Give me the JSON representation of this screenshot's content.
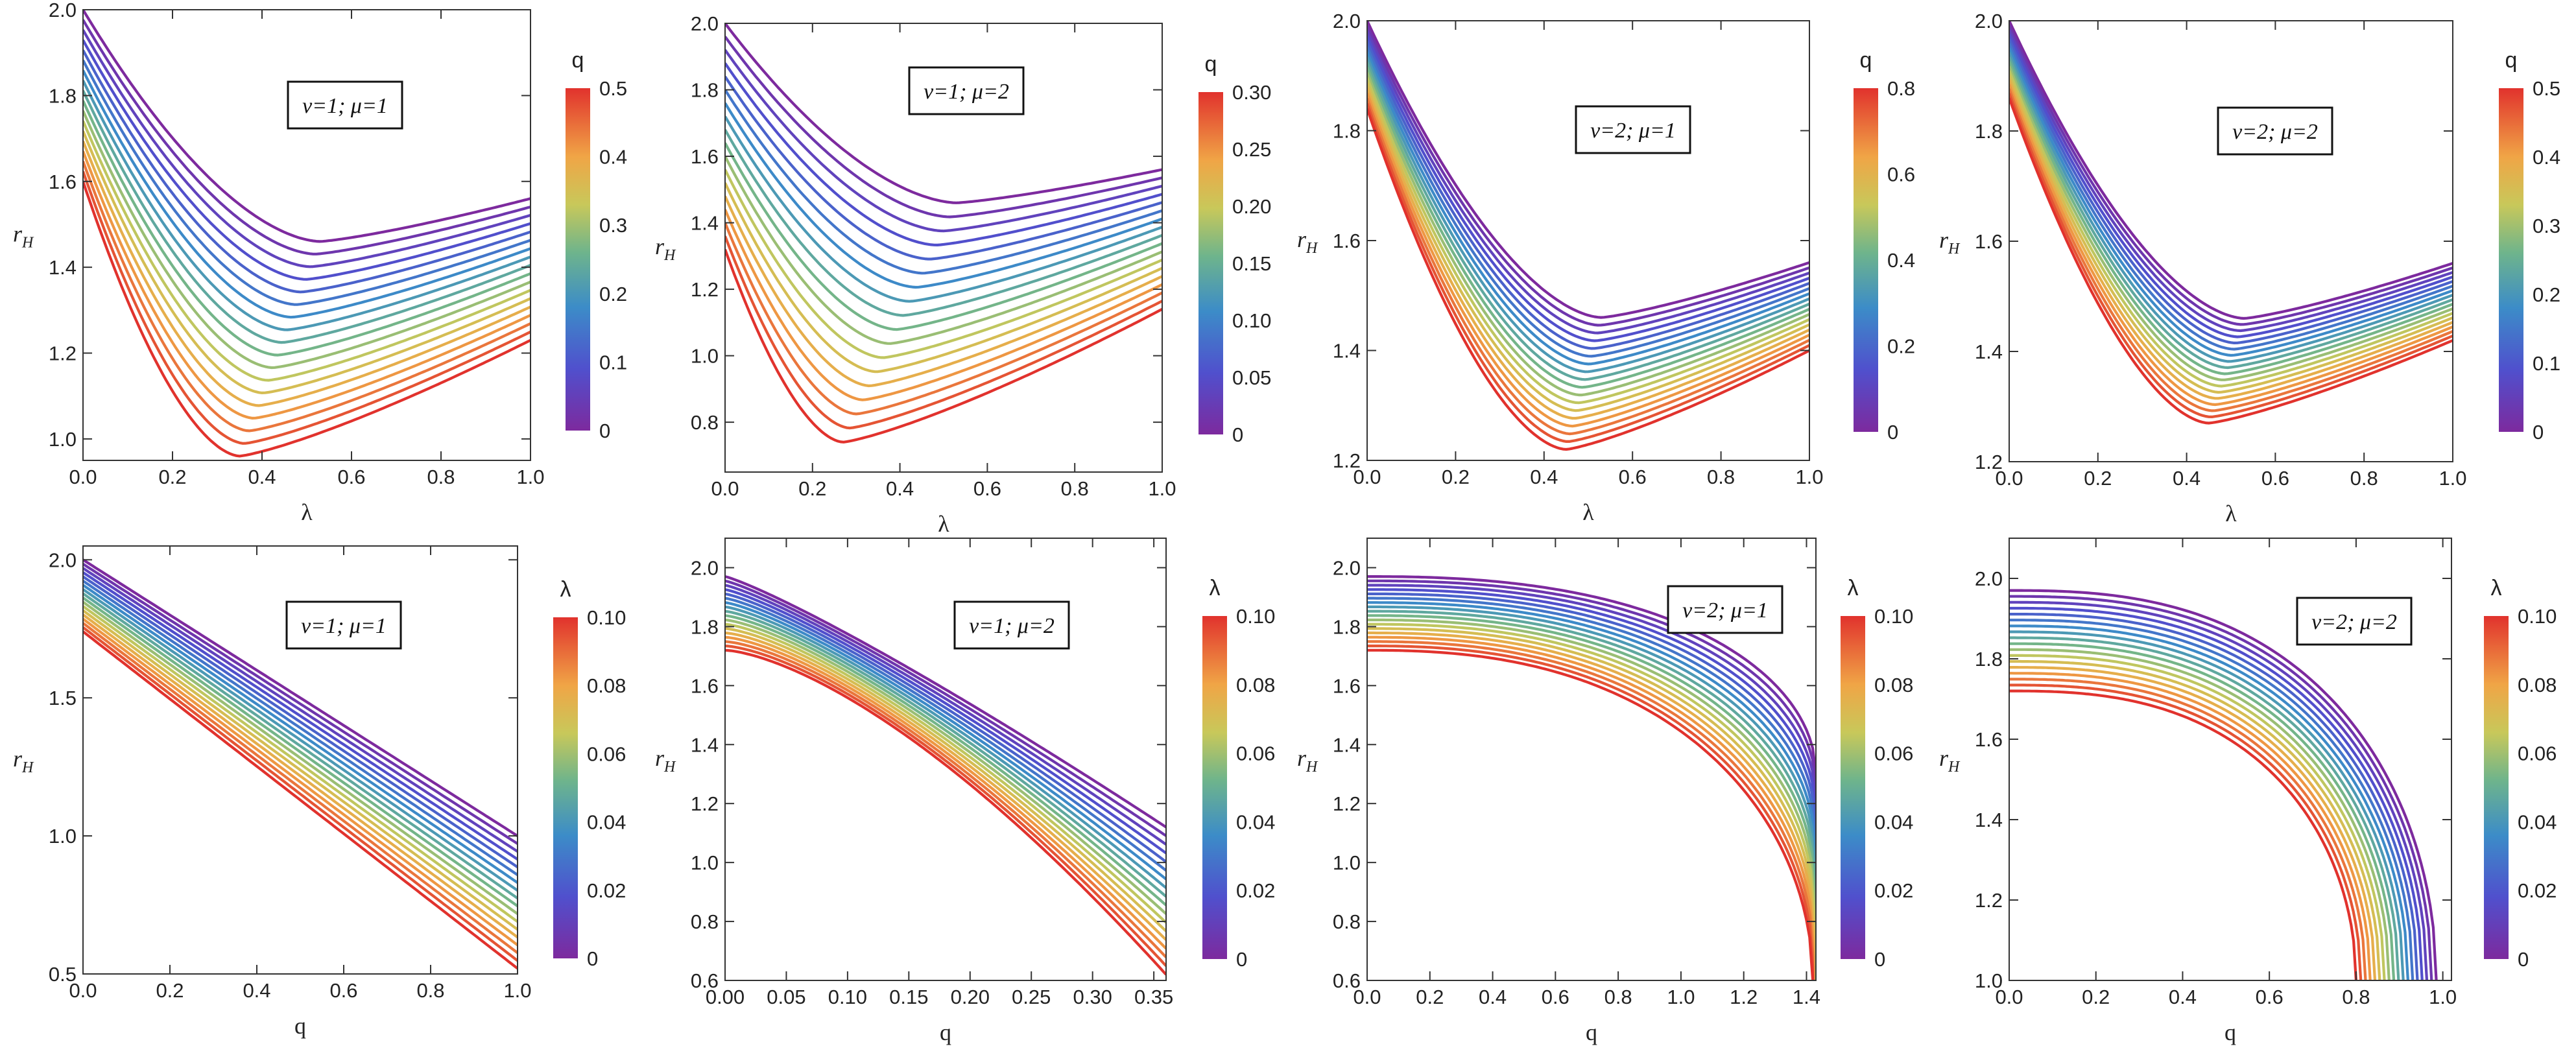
{
  "chart_data": [
    {
      "type": "line",
      "xlabel": "λ",
      "ylabel": "rH",
      "ylabel_main": "r",
      "ylabel_sub": "H",
      "param_label": "ν=1; μ=1",
      "xlim": [
        0,
        1
      ],
      "ylim": [
        0.95,
        2.0
      ],
      "xticks": [
        0.0,
        0.2,
        0.4,
        0.6,
        0.8,
        1.0
      ],
      "yticks": [
        1.0,
        1.2,
        1.4,
        1.6,
        1.8,
        2.0
      ],
      "xtick_labels": [
        "0.0",
        "0.2",
        "0.4",
        "0.6",
        "0.8",
        "1.0"
      ],
      "ytick_labels": [
        "1.0",
        "1.2",
        "1.4",
        "1.6",
        "1.8",
        "2.0"
      ],
      "colorbar": {
        "title": "q",
        "min": 0,
        "max": 0.5,
        "ticks": [
          0,
          0.1,
          0.2,
          0.3,
          0.4,
          0.5
        ],
        "tick_labels": [
          "0",
          "0.1",
          "0.2",
          "0.3",
          "0.4",
          "0.5"
        ]
      },
      "family": {
        "param_min": 0,
        "param_max": 0.5,
        "count": 18,
        "x0": 0,
        "x1": 1,
        "top": {
          "start": 2.0,
          "min_x": 0.53,
          "min_y": 1.46,
          "end": 1.56
        },
        "bottom": {
          "start": 1.6,
          "min_x": 0.35,
          "min_y": 0.96,
          "end": 1.23
        }
      }
    },
    {
      "type": "line",
      "xlabel": "λ",
      "ylabel": "rH",
      "ylabel_main": "r",
      "ylabel_sub": "H",
      "param_label": "ν=1; μ=2",
      "xlim": [
        0,
        1
      ],
      "ylim": [
        0.65,
        2.0
      ],
      "xticks": [
        0.0,
        0.2,
        0.4,
        0.6,
        0.8,
        1.0
      ],
      "yticks": [
        0.8,
        1.0,
        1.2,
        1.4,
        1.6,
        1.8,
        2.0
      ],
      "xtick_labels": [
        "0.0",
        "0.2",
        "0.4",
        "0.6",
        "0.8",
        "1.0"
      ],
      "ytick_labels": [
        "0.8",
        "1.0",
        "1.2",
        "1.4",
        "1.6",
        "1.8",
        "2.0"
      ],
      "colorbar": {
        "title": "q",
        "min": 0,
        "max": 0.3,
        "ticks": [
          0,
          0.05,
          0.1,
          0.15,
          0.2,
          0.25,
          0.3
        ],
        "tick_labels": [
          "0",
          "0.05",
          "0.10",
          "0.15",
          "0.20",
          "0.25",
          "0.30"
        ]
      },
      "family": {
        "param_min": 0,
        "param_max": 0.3,
        "count": 18,
        "x0": 0,
        "x1": 1,
        "top": {
          "start": 2.0,
          "min_x": 0.53,
          "min_y": 1.46,
          "end": 1.56
        },
        "bottom": {
          "start": 1.32,
          "min_x": 0.27,
          "min_y": 0.74,
          "end": 1.14
        }
      }
    },
    {
      "type": "line",
      "xlabel": "λ",
      "ylabel": "rH",
      "ylabel_main": "r",
      "ylabel_sub": "H",
      "param_label": "ν=2; μ=1",
      "xlim": [
        0,
        1
      ],
      "ylim": [
        1.2,
        2.0
      ],
      "xticks": [
        0.0,
        0.2,
        0.4,
        0.6,
        0.8,
        1.0
      ],
      "yticks": [
        1.2,
        1.4,
        1.6,
        1.8,
        2.0
      ],
      "xtick_labels": [
        "0.0",
        "0.2",
        "0.4",
        "0.6",
        "0.8",
        "1.0"
      ],
      "ytick_labels": [
        "1.2",
        "1.4",
        "1.6",
        "1.8",
        "2.0"
      ],
      "colorbar": {
        "title": "q",
        "min": 0,
        "max": 0.8,
        "ticks": [
          0,
          0.2,
          0.4,
          0.6,
          0.8
        ],
        "tick_labels": [
          "0",
          "0.2",
          "0.4",
          "0.6",
          "0.8"
        ]
      },
      "family": {
        "param_min": 0,
        "param_max": 0.8,
        "count": 18,
        "x0": 0,
        "x1": 1,
        "top": {
          "start": 2.0,
          "min_x": 0.53,
          "min_y": 1.46,
          "end": 1.56
        },
        "bottom": {
          "start": 1.84,
          "min_x": 0.45,
          "min_y": 1.22,
          "end": 1.4
        }
      }
    },
    {
      "type": "line",
      "xlabel": "λ",
      "ylabel": "rH",
      "ylabel_main": "r",
      "ylabel_sub": "H",
      "param_label": "ν=2; μ=2",
      "xlim": [
        0,
        1
      ],
      "ylim": [
        1.2,
        2.0
      ],
      "xticks": [
        0.0,
        0.2,
        0.4,
        0.6,
        0.8,
        1.0
      ],
      "yticks": [
        1.2,
        1.4,
        1.6,
        1.8,
        2.0
      ],
      "xtick_labels": [
        "0.0",
        "0.2",
        "0.4",
        "0.6",
        "0.8",
        "1.0"
      ],
      "ytick_labels": [
        "1.2",
        "1.4",
        "1.6",
        "1.8",
        "2.0"
      ],
      "colorbar": {
        "title": "q",
        "min": 0,
        "max": 0.5,
        "ticks": [
          0,
          0.1,
          0.2,
          0.3,
          0.4,
          0.5
        ],
        "tick_labels": [
          "0",
          "0.1",
          "0.2",
          "0.3",
          "0.4",
          "0.5"
        ]
      },
      "family": {
        "param_min": 0,
        "param_max": 0.5,
        "count": 18,
        "x0": 0,
        "x1": 1,
        "top": {
          "start": 2.0,
          "min_x": 0.53,
          "min_y": 1.46,
          "end": 1.56
        },
        "bottom": {
          "start": 1.86,
          "min_x": 0.45,
          "min_y": 1.27,
          "end": 1.42
        }
      }
    },
    {
      "type": "line",
      "xlabel": "q",
      "ylabel": "rH",
      "ylabel_main": "r",
      "ylabel_sub": "H",
      "param_label": "ν=1; μ=1",
      "xlim": [
        0,
        1
      ],
      "ylim": [
        0.5,
        2.05
      ],
      "xticks": [
        0.0,
        0.2,
        0.4,
        0.6,
        0.8,
        1.0
      ],
      "yticks": [
        0.5,
        1.0,
        1.5,
        2.0
      ],
      "xtick_labels": [
        "0.0",
        "0.2",
        "0.4",
        "0.6",
        "0.8",
        "1.0"
      ],
      "ytick_labels": [
        "0.5",
        "1.0",
        "1.5",
        "2.0"
      ],
      "colorbar": {
        "title": "λ",
        "min": 0,
        "max": 0.1,
        "ticks": [
          0,
          0.02,
          0.04,
          0.06,
          0.08,
          0.1
        ],
        "tick_labels": [
          "0",
          "0.02",
          "0.04",
          "0.06",
          "0.08",
          "0.10"
        ]
      },
      "family": {
        "param_min": 0,
        "param_max": 0.1,
        "count": 18,
        "shape": "linear",
        "x0": 0,
        "x1": 1,
        "top": {
          "y0": 2.0,
          "y1": 1.0
        },
        "bottom": {
          "y0": 1.74,
          "y1": 0.52
        }
      }
    },
    {
      "type": "line",
      "xlabel": "q",
      "ylabel": "rH",
      "ylabel_main": "r",
      "ylabel_sub": "H",
      "param_label": "ν=1; μ=2",
      "xlim": [
        0,
        0.36
      ],
      "ylim": [
        0.6,
        2.1
      ],
      "xticks": [
        0.0,
        0.05,
        0.1,
        0.15,
        0.2,
        0.25,
        0.3,
        0.35
      ],
      "yticks": [
        0.6,
        0.8,
        1.0,
        1.2,
        1.4,
        1.6,
        1.8,
        2.0
      ],
      "xtick_labels": [
        "0.00",
        "0.05",
        "0.10",
        "0.15",
        "0.20",
        "0.25",
        "0.30",
        "0.35"
      ],
      "ytick_labels": [
        "0.6",
        "0.8",
        "1.0",
        "1.2",
        "1.4",
        "1.6",
        "1.8",
        "2.0"
      ],
      "colorbar": {
        "title": "λ",
        "min": 0,
        "max": 0.1,
        "ticks": [
          0,
          0.02,
          0.04,
          0.06,
          0.08,
          0.1
        ],
        "tick_labels": [
          "0",
          "0.02",
          "0.04",
          "0.06",
          "0.08",
          "0.10"
        ]
      },
      "family": {
        "param_min": 0,
        "param_max": 0.1,
        "count": 18,
        "shape": "concave",
        "x0": 0,
        "x1": 0.36,
        "top": {
          "y0": 1.97,
          "y1": 1.12,
          "p": 1.15
        },
        "bottom": {
          "y0": 1.72,
          "y1": 0.62,
          "p": 1.5
        }
      }
    },
    {
      "type": "line",
      "xlabel": "q",
      "ylabel": "rH",
      "ylabel_main": "r",
      "ylabel_sub": "H",
      "param_label": "ν=2; μ=1",
      "xlim": [
        0,
        1.43
      ],
      "ylim": [
        0.6,
        2.1
      ],
      "xticks": [
        0.0,
        0.2,
        0.4,
        0.6,
        0.8,
        1.0,
        1.2,
        1.4
      ],
      "yticks": [
        0.6,
        0.8,
        1.0,
        1.2,
        1.4,
        1.6,
        1.8,
        2.0
      ],
      "xtick_labels": [
        "0.0",
        "0.2",
        "0.4",
        "0.6",
        "0.8",
        "1.0",
        "1.2",
        "1.4"
      ],
      "ytick_labels": [
        "0.6",
        "0.8",
        "1.0",
        "1.2",
        "1.4",
        "1.6",
        "1.8",
        "2.0"
      ],
      "colorbar": {
        "title": "λ",
        "min": 0,
        "max": 0.1,
        "ticks": [
          0,
          0.02,
          0.04,
          0.06,
          0.08,
          0.1
        ],
        "tick_labels": [
          "0",
          "0.02",
          "0.04",
          "0.06",
          "0.08",
          "0.10"
        ]
      },
      "family": {
        "param_min": 0,
        "param_max": 0.1,
        "count": 18,
        "shape": "ellipse",
        "x0": 0,
        "top": {
          "y0": 1.97,
          "y1": 1.3,
          "xe": 1.43
        },
        "bottom": {
          "y0": 1.72,
          "y1": 0.6,
          "xe": 1.42
        }
      }
    },
    {
      "type": "line",
      "xlabel": "q",
      "ylabel": "rH",
      "ylabel_main": "r",
      "ylabel_sub": "H",
      "param_label": "ν=2; μ=2",
      "xlim": [
        0,
        1.02
      ],
      "ylim": [
        1.0,
        2.1
      ],
      "xticks": [
        0.0,
        0.2,
        0.4,
        0.6,
        0.8,
        1.0
      ],
      "yticks": [
        1.0,
        1.2,
        1.4,
        1.6,
        1.8,
        2.0
      ],
      "xtick_labels": [
        "0.0",
        "0.2",
        "0.4",
        "0.6",
        "0.8",
        "1.0"
      ],
      "ytick_labels": [
        "1.0",
        "1.2",
        "1.4",
        "1.6",
        "1.8",
        "2.0"
      ],
      "colorbar": {
        "title": "λ",
        "min": 0,
        "max": 0.1,
        "ticks": [
          0,
          0.02,
          0.04,
          0.06,
          0.08,
          0.1
        ],
        "tick_labels": [
          "0",
          "0.02",
          "0.04",
          "0.06",
          "0.08",
          "0.10"
        ]
      },
      "family": {
        "param_min": 0,
        "param_max": 0.1,
        "count": 18,
        "shape": "circle",
        "x0": 0,
        "top": {
          "y0": 1.97,
          "xe": 0.985
        },
        "bottom": {
          "y0": 1.72,
          "xe": 0.8
        }
      }
    }
  ]
}
